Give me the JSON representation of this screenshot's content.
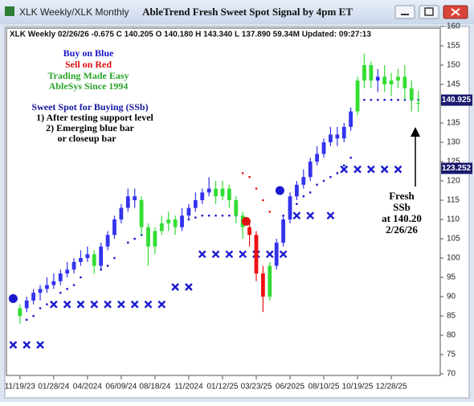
{
  "window": {
    "title": "XLK Weekly/XLK Monthly"
  },
  "chart_data": {
    "type": "candlestick",
    "title": "AbleTrend Fresh Sweet Spot Signal by 4pm ET",
    "info": "XLK  Weekly 02/26/26 -0.675 C 140.205 O 140.180 H 143.340 L 137.890 59.34M Updated: 09:27:13",
    "annotations": [
      {
        "text": "Buy on Blue",
        "color": "#1515c8"
      },
      {
        "text": "Sell on Red",
        "color": "#e01010"
      },
      {
        "text": "Trading Made Easy",
        "color": "#2aa52a"
      },
      {
        "text": "AbleSys Since 1994",
        "color": "#2aa52a"
      },
      {
        "text": "Sweet Spot for Buying (SSb)",
        "color": "#1515a0"
      },
      {
        "text": "1) After testing support level",
        "color": "#000000"
      },
      {
        "text": "2) Emerging blue bar",
        "color": "#000000"
      },
      {
        "text": "or closeup bar",
        "color": "#000000"
      }
    ],
    "callout": [
      "Fresh",
      "SSb",
      "at 140.20",
      "2/26/26"
    ],
    "x": [
      0,
      2,
      4,
      6,
      8,
      10,
      12,
      14,
      16,
      18,
      20,
      22,
      24,
      26,
      28,
      30,
      32,
      34,
      36,
      38,
      40,
      42,
      44,
      46,
      48,
      50,
      52,
      54,
      56,
      58,
      60,
      62,
      64,
      66,
      68,
      70,
      72,
      74,
      76,
      78,
      80,
      82,
      84,
      86,
      88,
      90,
      92,
      94,
      96,
      98,
      100,
      102,
      104,
      106,
      108,
      110,
      112,
      114,
      116,
      118
    ],
    "open": [
      85,
      87,
      89,
      91,
      92,
      93,
      94,
      96,
      97,
      99,
      100,
      101,
      98,
      103,
      106,
      110,
      113,
      116,
      115,
      108,
      103,
      107,
      109,
      110,
      108,
      111,
      113,
      115,
      117,
      118,
      116,
      118,
      115,
      111,
      108,
      106,
      96,
      90,
      98,
      104,
      110,
      116,
      119,
      121,
      125,
      127,
      130,
      132,
      131,
      134,
      138,
      146,
      150,
      146,
      147,
      145,
      146,
      147,
      144,
      140.18
    ],
    "high": [
      88,
      90,
      92,
      93,
      95,
      96,
      97,
      99,
      100,
      102,
      103,
      102,
      104,
      107,
      111,
      114,
      118,
      118,
      116,
      109,
      108,
      111,
      112,
      111,
      113,
      114,
      117,
      118,
      121,
      120,
      120,
      119,
      116,
      112,
      110,
      107,
      98,
      99,
      105,
      111,
      117,
      120,
      123,
      126,
      129,
      131,
      134,
      134,
      135,
      139,
      147,
      153,
      151,
      149,
      150,
      148,
      149,
      150,
      146,
      143.34
    ],
    "low": [
      83,
      86,
      88,
      89,
      91,
      92,
      93,
      95,
      96,
      98,
      99,
      96,
      97,
      102,
      105,
      109,
      112,
      113,
      106,
      98,
      101,
      106,
      107,
      106,
      107,
      110,
      112,
      114,
      116,
      114,
      115,
      113,
      109,
      105,
      103,
      94,
      86,
      89,
      97,
      103,
      109,
      115,
      118,
      120,
      124,
      126,
      129,
      129,
      130,
      133,
      137,
      144,
      144,
      143,
      143,
      142,
      144,
      141,
      138,
      137.89
    ],
    "close": [
      87,
      89,
      91,
      92,
      93,
      94,
      96,
      97,
      99,
      100,
      101,
      98,
      103,
      106,
      110,
      113,
      116,
      115,
      108,
      103,
      107,
      109,
      110,
      108,
      111,
      113,
      115,
      117,
      118,
      116,
      118,
      115,
      111,
      108,
      106,
      96,
      90,
      98,
      104,
      110,
      116,
      119,
      121,
      125,
      127,
      130,
      132,
      131,
      134,
      138,
      146,
      150,
      146,
      147,
      145,
      146,
      147,
      144,
      141,
      140.205
    ],
    "bar_colors": [
      "#33dd33",
      "#3333ee",
      "#3333ee",
      "#3333ee",
      "#3333ee",
      "#3333ee",
      "#3333ee",
      "#3333ee",
      "#3333ee",
      "#3333ee",
      "#3333ee",
      "#33dd33",
      "#3333ee",
      "#3333ee",
      "#3333ee",
      "#3333ee",
      "#3333ee",
      "#3333ee",
      "#33dd33",
      "#33dd33",
      "#33dd33",
      "#33dd33",
      "#33dd33",
      "#33dd33",
      "#3333ee",
      "#3333ee",
      "#3333ee",
      "#3333ee",
      "#3333ee",
      "#33dd33",
      "#33dd33",
      "#33dd33",
      "#33dd33",
      "#33dd33",
      "#ee1111",
      "#ee1111",
      "#ee1111",
      "#33dd33",
      "#3333ee",
      "#3333ee",
      "#3333ee",
      "#3333ee",
      "#3333ee",
      "#3333ee",
      "#3333ee",
      "#3333ee",
      "#3333ee",
      "#3333ee",
      "#3333ee",
      "#3333ee",
      "#33dd33",
      "#33dd33",
      "#33dd33",
      "#3333ee",
      "#33dd33",
      "#33dd33",
      "#33dd33",
      "#33dd33",
      "#33dd33",
      "#33dd33"
    ],
    "overlays": [
      {
        "type": "dots",
        "color": "#1515c8",
        "x": [
          2,
          4,
          6,
          8,
          12,
          14,
          16,
          18,
          24,
          26,
          28,
          32,
          34,
          36,
          50,
          52,
          54,
          56,
          58,
          60,
          62,
          64,
          78,
          80,
          82,
          84,
          86,
          88,
          90,
          92,
          94,
          96,
          98,
          102,
          104,
          106,
          108,
          110,
          112,
          114,
          116,
          118
        ],
        "values": [
          84,
          85,
          87,
          88,
          91,
          92,
          93,
          95,
          97,
          98,
          100,
          104,
          105,
          106,
          110,
          110.5,
          111,
          111,
          111,
          111,
          111,
          111,
          111,
          112,
          114,
          116,
          117,
          119,
          120,
          121,
          122,
          124,
          126,
          141,
          141,
          141,
          141,
          141,
          141,
          141,
          141,
          141
        ]
      },
      {
        "type": "dots",
        "color": "#ee1111",
        "x": [
          66,
          68,
          70,
          72,
          74
        ],
        "values": [
          122,
          121,
          118,
          115,
          112
        ]
      },
      {
        "type": "cross",
        "color": "#1a1ad0",
        "x": [
          -2,
          2,
          6,
          10,
          14,
          18,
          22,
          26,
          30,
          34,
          38,
          42,
          46,
          50,
          54,
          58,
          62,
          66,
          70,
          74,
          78,
          82,
          86,
          92,
          96,
          100,
          104,
          108,
          112
        ],
        "values": [
          77.5,
          77.5,
          77.5,
          88,
          88,
          88,
          88,
          88,
          88,
          88,
          88,
          88,
          92.5,
          92.5,
          101,
          101,
          101,
          101,
          101,
          101,
          101,
          111,
          111,
          111,
          123,
          123,
          123,
          123,
          123
        ]
      },
      {
        "type": "signal",
        "colors": [
          "#1a1ad0",
          "#e01010",
          "#1a1ad0"
        ],
        "x": [
          -2,
          67,
          77
        ],
        "values": [
          89.5,
          109.5,
          117.5
        ]
      }
    ],
    "price_labels": [
      {
        "value": 140.925,
        "color": "#1a1a6e"
      },
      {
        "value": 123.252,
        "color": "#1a1a6e"
      }
    ],
    "xlim": [
      -4,
      124.5
    ],
    "xticks": [
      {
        "value": 0,
        "label": "11/19/23"
      },
      {
        "value": 10,
        "label": "01/28/24"
      },
      {
        "value": 20,
        "label": "04/2024"
      },
      {
        "value": 30,
        "label": "06/09/24"
      },
      {
        "value": 40,
        "label": "08/18/24"
      },
      {
        "value": 50,
        "label": "11/2024"
      },
      {
        "value": 60,
        "label": "01/12/25"
      },
      {
        "value": 70,
        "label": "03/23/25"
      },
      {
        "value": 80,
        "label": "06/2025"
      },
      {
        "value": 90,
        "label": "08/10/25"
      },
      {
        "value": 100,
        "label": "10/19/25"
      },
      {
        "value": 110,
        "label": "12/28/25"
      }
    ],
    "ylim": [
      70,
      160
    ],
    "yticks": [
      70,
      75,
      80,
      85,
      90,
      95,
      100,
      105,
      110,
      115,
      120,
      125,
      130,
      135,
      140,
      145,
      150,
      155,
      160
    ]
  }
}
